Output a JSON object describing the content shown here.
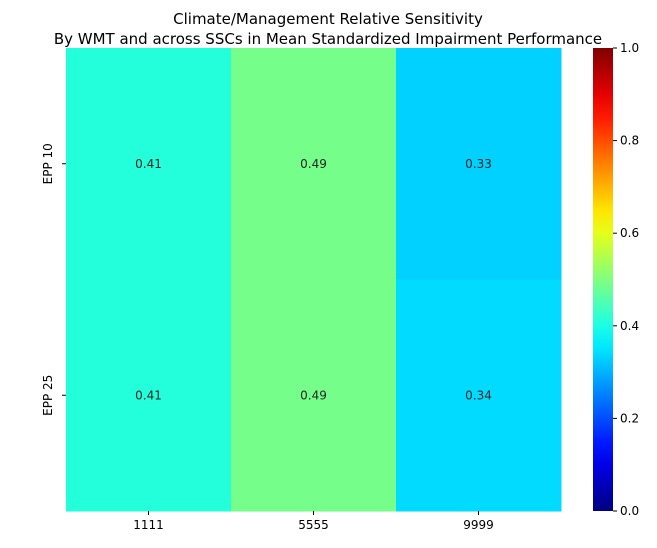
{
  "chart_data": {
    "type": "heatmap",
    "title": "Climate/Management Relative Sensitivity",
    "subtitle": "By WMT and across SSCs in Mean Standardized Impairment Performance",
    "x_categories": [
      "1111",
      "5555",
      "9999"
    ],
    "y_categories": [
      "EPP 10",
      "EPP 25"
    ],
    "values": [
      [
        0.41,
        0.49,
        0.33
      ],
      [
        0.41,
        0.49,
        0.34
      ]
    ],
    "value_labels": [
      [
        "0.41",
        "0.49",
        "0.33"
      ],
      [
        "0.41",
        "0.49",
        "0.34"
      ]
    ],
    "colormap": "jet",
    "vmin": 0.0,
    "vmax": 1.0,
    "colorbar_ticks": [
      "0.0",
      "0.2",
      "0.4",
      "0.6",
      "0.8",
      "1.0"
    ],
    "colorbar_tick_values": [
      0.0,
      0.2,
      0.4,
      0.6,
      0.8,
      1.0
    ],
    "grid": false,
    "colorbar_position": "right"
  }
}
